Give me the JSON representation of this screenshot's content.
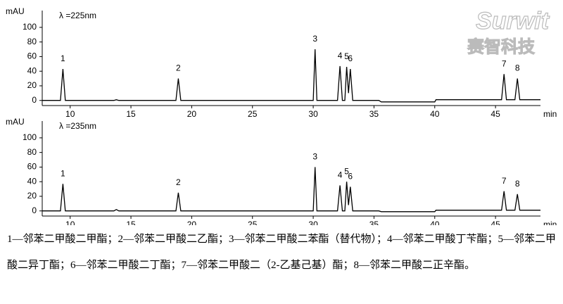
{
  "chart_data": [
    {
      "type": "line",
      "wavelength": "λ =225nm",
      "ylabel": "mAU",
      "xlabel": "min",
      "color": "#000000",
      "xlim": [
        7.7,
        48.7
      ],
      "ylim": [
        -7,
        123
      ],
      "xticks": [
        10,
        15,
        20,
        25,
        30,
        35,
        40,
        45
      ],
      "yticks": [
        0,
        20,
        40,
        60,
        80,
        100
      ],
      "x": [
        7.7,
        9.2,
        9.4,
        9.6,
        13.6,
        13.8,
        14.0,
        18.7,
        18.9,
        19.1,
        30.0,
        30.15,
        30.3,
        32.0,
        32.2,
        32.4,
        32.6,
        32.75,
        32.9,
        33.05,
        33.25,
        35.4,
        35.6,
        40.0,
        40.1,
        45.5,
        45.7,
        45.9,
        46.6,
        46.8,
        47.0,
        48.7
      ],
      "values": [
        0,
        0,
        43,
        0,
        0,
        1,
        0,
        0,
        30,
        0,
        0,
        70,
        0,
        0,
        47,
        0,
        0,
        46,
        10,
        43,
        0,
        0,
        -2,
        -2,
        1,
        1,
        36,
        1,
        1,
        30,
        1,
        1
      ],
      "annotations": [
        {
          "label": "1",
          "x": 9.4
        },
        {
          "label": "2",
          "x": 18.9
        },
        {
          "label": "3",
          "x": 30.15
        },
        {
          "label": "4",
          "x": 32.2
        },
        {
          "label": "5",
          "x": 32.75
        },
        {
          "label": "6",
          "x": 33.05
        },
        {
          "label": "7",
          "x": 45.7
        },
        {
          "label": "8",
          "x": 46.8
        }
      ]
    },
    {
      "type": "line",
      "wavelength": "λ =235nm",
      "ylabel": "mAU",
      "xlabel": "min",
      "color": "#000000",
      "xlim": [
        7.7,
        48.7
      ],
      "ylim": [
        -7,
        123
      ],
      "xticks": [
        10,
        15,
        20,
        25,
        30,
        35,
        40,
        45
      ],
      "yticks": [
        0,
        20,
        40,
        60,
        80,
        100
      ],
      "x": [
        7.7,
        9.2,
        9.4,
        9.6,
        13.6,
        13.8,
        14.0,
        18.7,
        18.9,
        19.1,
        30.0,
        30.15,
        30.3,
        32.0,
        32.2,
        32.4,
        32.6,
        32.75,
        32.9,
        33.05,
        33.25,
        35.4,
        35.6,
        40.0,
        40.1,
        45.5,
        45.7,
        45.9,
        46.6,
        46.8,
        47.0,
        48.7
      ],
      "values": [
        0,
        0,
        37,
        0,
        0,
        2,
        0,
        0,
        25,
        0,
        0,
        60,
        0,
        0,
        35,
        0,
        0,
        40,
        8,
        33,
        0,
        0,
        -1,
        -1,
        1,
        1,
        27,
        1,
        1,
        23,
        1,
        1
      ],
      "annotations": [
        {
          "label": "1",
          "x": 9.4
        },
        {
          "label": "2",
          "x": 18.9
        },
        {
          "label": "3",
          "x": 30.15
        },
        {
          "label": "4",
          "x": 32.2
        },
        {
          "label": "5",
          "x": 32.75
        },
        {
          "label": "6",
          "x": 33.05
        },
        {
          "label": "7",
          "x": 45.7
        },
        {
          "label": "8",
          "x": 46.8
        }
      ]
    }
  ],
  "watermark": {
    "brand": "Surwit",
    "name": "赛智科技"
  },
  "caption": "1—邻苯二甲酸二甲酯；2—邻苯二甲酸二乙酯；3—邻苯二甲酸二苯酯（替代物）；4—邻苯二甲酸丁苄酯；5—邻苯二甲酸二异丁酯；6—邻苯二甲酸二丁酯；7—邻苯二甲酸二（2-乙基己基）酯；8—邻苯二甲酸二正辛酯。"
}
